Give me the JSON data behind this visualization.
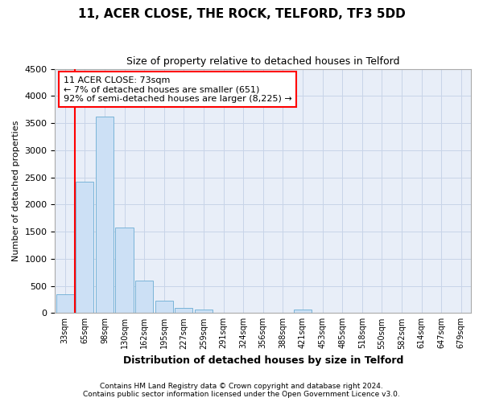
{
  "title": "11, ACER CLOSE, THE ROCK, TELFORD, TF3 5DD",
  "subtitle": "Size of property relative to detached houses in Telford",
  "xlabel": "Distribution of detached houses by size in Telford",
  "ylabel": "Number of detached properties",
  "footer_line1": "Contains HM Land Registry data © Crown copyright and database right 2024.",
  "footer_line2": "Contains public sector information licensed under the Open Government Licence v3.0.",
  "categories": [
    "33sqm",
    "65sqm",
    "98sqm",
    "130sqm",
    "162sqm",
    "195sqm",
    "227sqm",
    "259sqm",
    "291sqm",
    "324sqm",
    "356sqm",
    "388sqm",
    "421sqm",
    "453sqm",
    "485sqm",
    "518sqm",
    "550sqm",
    "582sqm",
    "614sqm",
    "647sqm",
    "679sqm"
  ],
  "values": [
    340,
    2420,
    3620,
    1580,
    590,
    220,
    100,
    65,
    0,
    0,
    0,
    0,
    65,
    0,
    0,
    0,
    0,
    0,
    0,
    0,
    0
  ],
  "bar_color": "#cce0f5",
  "bar_edge_color": "#7ab4d8",
  "property_line_x": 0.5,
  "property_line_color": "red",
  "annotation_line1": "11 ACER CLOSE: 73sqm",
  "annotation_line2": "← 7% of detached houses are smaller (651)",
  "annotation_line3": "92% of semi-detached houses are larger (8,225) →",
  "annotation_box_color": "white",
  "annotation_box_edge_color": "red",
  "ylim": [
    0,
    4500
  ],
  "yticks": [
    0,
    500,
    1000,
    1500,
    2000,
    2500,
    3000,
    3500,
    4000,
    4500
  ],
  "title_fontsize": 11,
  "subtitle_fontsize": 9,
  "annotation_fontsize": 8,
  "grid_color": "#c8d4e8",
  "bg_color": "#e8eef8"
}
